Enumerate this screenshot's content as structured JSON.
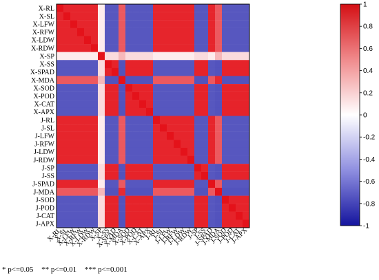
{
  "chart_data": {
    "type": "heatmap",
    "title": "",
    "xlabel": "",
    "ylabel": "",
    "labels": [
      "X-RL",
      "X-SL",
      "X-LFW",
      "X-RFW",
      "X-LDW",
      "X-RDW",
      "X-SP",
      "X-SS",
      "X-SPAD",
      "X-MDA",
      "X-SOD",
      "X-POD",
      "X-CAT",
      "X-APX",
      "J-RL",
      "J-SL",
      "J-LFW",
      "J-RFW",
      "J-LDW",
      "J-RDW",
      "J-SP",
      "J-SS",
      "J-SPAD",
      "J-MDA",
      "J-SOD",
      "J-POD",
      "J-CAT",
      "J-APX"
    ],
    "groups": {
      "growth": [
        "X-RL",
        "X-SL",
        "X-LFW",
        "X-RFW",
        "X-LDW",
        "X-RDW",
        "J-RL",
        "J-SL",
        "J-LFW",
        "J-RFW",
        "J-LDW",
        "J-RDW",
        "J-SPAD"
      ],
      "physiology": [
        "X-SS",
        "X-SPAD",
        "X-SOD",
        "X-POD",
        "X-CAT",
        "X-APX",
        "J-SS",
        "J-SOD",
        "J-POD",
        "J-CAT",
        "J-APX",
        "J-SP"
      ],
      "protein": [
        "X-SP"
      ],
      "oxidative": [
        "X-MDA",
        "J-MDA"
      ]
    },
    "group_correlations": {
      "growth-growth": 0.92,
      "physiology-physiology": 0.93,
      "growth-physiology": -0.72,
      "oxidative-oxidative": 0.9,
      "growth-oxidative": 0.7,
      "physiology-oxidative": -0.74,
      "protein-protein": 1.0,
      "protein-growth": 0.08,
      "protein-physiology": 0.15,
      "protein-oxidative": 0.3
    },
    "colorbar": {
      "min": -1,
      "max": 1,
      "ticks": [
        1,
        0.8,
        0.6,
        0.4,
        0.2,
        0,
        -0.2,
        -0.4,
        -0.6,
        -0.8,
        -1
      ],
      "tick_labels": [
        "1",
        "0.8",
        "0.6",
        "0.4",
        "0.2",
        "0",
        "-0.2",
        "-0.4",
        "-0.6",
        "-0.8",
        "-1"
      ],
      "colors": {
        "low": "#1616a6",
        "mid": "#ffffff",
        "high": "#e4121a"
      }
    },
    "significance_legend": [
      "* p<=0.05",
      "** p<=0.01",
      "*** p<=0.001"
    ]
  }
}
